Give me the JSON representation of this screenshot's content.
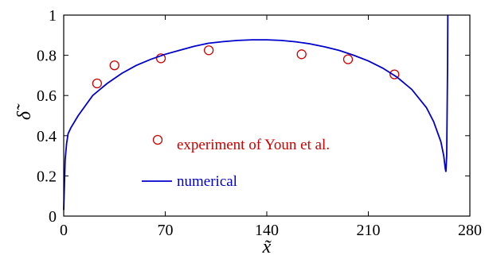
{
  "chart_data": {
    "type": "line",
    "xlabel": "x̃",
    "ylabel": "δ̃",
    "xlim": [
      0,
      280
    ],
    "ylim": [
      0,
      1
    ],
    "xticks": [
      0,
      70,
      140,
      210,
      280
    ],
    "xtick_labels": [
      "0",
      "70",
      "140",
      "210",
      "280"
    ],
    "yticks": [
      0,
      0.2,
      0.4,
      0.6,
      0.8,
      1
    ],
    "ytick_labels": [
      "0",
      "0.2",
      "0.4",
      "0.6",
      "0.8",
      "1"
    ],
    "grid": false,
    "legend_placement": "center-left",
    "series": [
      {
        "name": "experiment of Youn et al.",
        "kind": "scatter",
        "marker": "open-circle",
        "color": "#cc0000",
        "points": [
          [
            23,
            0.66
          ],
          [
            35,
            0.75
          ],
          [
            67,
            0.785
          ],
          [
            100,
            0.825
          ],
          [
            164,
            0.805
          ],
          [
            196,
            0.78
          ],
          [
            228,
            0.705
          ]
        ]
      },
      {
        "name": "numerical",
        "kind": "line",
        "color": "#0000cc",
        "points": [
          [
            0,
            0.03
          ],
          [
            1,
            0.28
          ],
          [
            2,
            0.36
          ],
          [
            3,
            0.41
          ],
          [
            5,
            0.44
          ],
          [
            10,
            0.5
          ],
          [
            20,
            0.6
          ],
          [
            30,
            0.66
          ],
          [
            40,
            0.71
          ],
          [
            50,
            0.75
          ],
          [
            60,
            0.78
          ],
          [
            70,
            0.805
          ],
          [
            80,
            0.825
          ],
          [
            90,
            0.845
          ],
          [
            100,
            0.86
          ],
          [
            110,
            0.868
          ],
          [
            120,
            0.874
          ],
          [
            130,
            0.877
          ],
          [
            140,
            0.877
          ],
          [
            150,
            0.874
          ],
          [
            160,
            0.867
          ],
          [
            170,
            0.857
          ],
          [
            180,
            0.842
          ],
          [
            190,
            0.824
          ],
          [
            200,
            0.8
          ],
          [
            210,
            0.772
          ],
          [
            220,
            0.736
          ],
          [
            230,
            0.69
          ],
          [
            240,
            0.63
          ],
          [
            250,
            0.54
          ],
          [
            255,
            0.47
          ],
          [
            260,
            0.37
          ],
          [
            262,
            0.3
          ],
          [
            263,
            0.24
          ],
          [
            263.5,
            0.22
          ],
          [
            264,
            0.3
          ],
          [
            264.3,
            0.5
          ],
          [
            264.6,
            0.75
          ],
          [
            264.8,
            1.0
          ]
        ]
      }
    ]
  }
}
